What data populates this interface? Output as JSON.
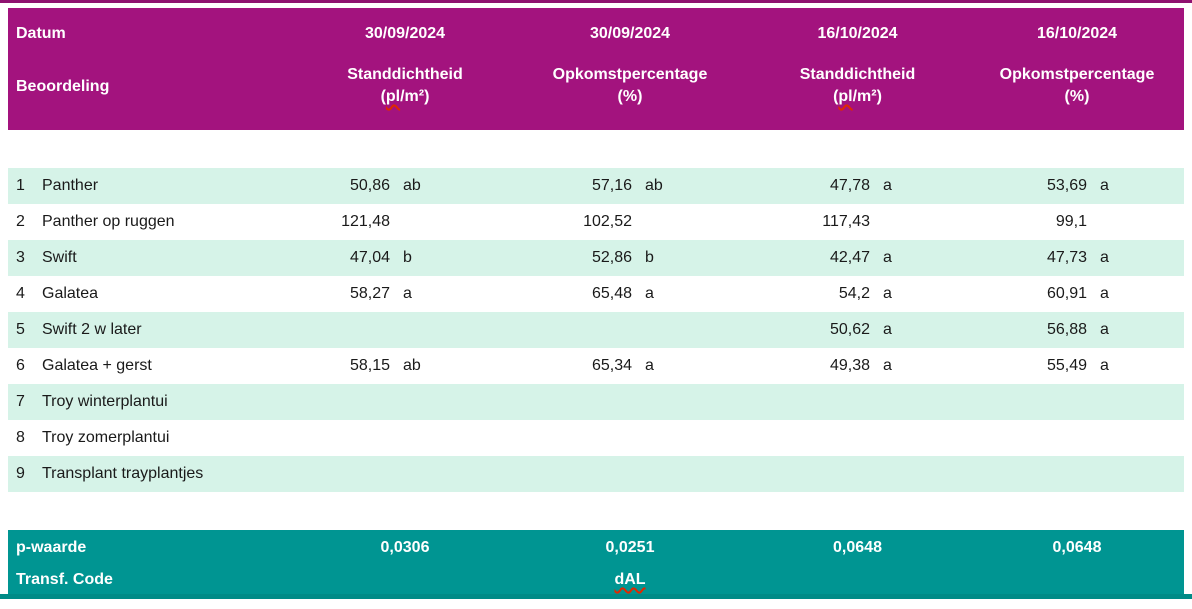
{
  "colors": {
    "header_bg": "#A3137E",
    "footer_bg": "#009592",
    "row_alt_bg": "#D6F3E8",
    "top_line": "#8F1170",
    "bottom_line": "#008B87",
    "spellcheck_squiggle": "#E02800",
    "body_text": "#1A1A1A",
    "header_text": "#FFFFFF"
  },
  "header": {
    "corner_row1": "Datum",
    "corner_row2": "Beoordeling",
    "columns": [
      {
        "date": "30/09/2024",
        "measure": "Standdichtheid",
        "unit_pre": "(",
        "unit_marked": "pl",
        "unit_post": "/m²)"
      },
      {
        "date": "30/09/2024",
        "measure": "Opkomstpercentage",
        "unit_pre": "(%)",
        "unit_marked": "",
        "unit_post": ""
      },
      {
        "date": "16/10/2024",
        "measure": "Standdichtheid",
        "unit_pre": "(",
        "unit_marked": "pl",
        "unit_post": "/m²)"
      },
      {
        "date": "16/10/2024",
        "measure": "Opkomstpercentage",
        "unit_pre": "(%)",
        "unit_marked": "",
        "unit_post": ""
      }
    ]
  },
  "rows": [
    {
      "num": "1",
      "name": "Panther",
      "values": [
        {
          "v": "50,86",
          "sig": "ab"
        },
        {
          "v": "57,16",
          "sig": "ab"
        },
        {
          "v": "47,78",
          "sig": "a"
        },
        {
          "v": "53,69",
          "sig": "a"
        }
      ]
    },
    {
      "num": "2",
      "name": "Panther op ruggen",
      "values": [
        {
          "v": "121,48",
          "sig": ""
        },
        {
          "v": "102,52",
          "sig": ""
        },
        {
          "v": "117,43",
          "sig": ""
        },
        {
          "v": "99,1",
          "sig": ""
        }
      ]
    },
    {
      "num": "3",
      "name": "Swift",
      "values": [
        {
          "v": "47,04",
          "sig": "b"
        },
        {
          "v": "52,86",
          "sig": "b"
        },
        {
          "v": "42,47",
          "sig": "a"
        },
        {
          "v": "47,73",
          "sig": "a"
        }
      ]
    },
    {
      "num": "4",
      "name": "Galatea",
      "values": [
        {
          "v": "58,27",
          "sig": "a"
        },
        {
          "v": "65,48",
          "sig": "a"
        },
        {
          "v": "54,2",
          "sig": "a"
        },
        {
          "v": "60,91",
          "sig": "a"
        }
      ]
    },
    {
      "num": "5",
      "name": "Swift 2 w later",
      "values": [
        {
          "v": "",
          "sig": ""
        },
        {
          "v": "",
          "sig": ""
        },
        {
          "v": "50,62",
          "sig": "a"
        },
        {
          "v": "56,88",
          "sig": "a"
        }
      ]
    },
    {
      "num": "6",
      "name": "Galatea + gerst",
      "values": [
        {
          "v": "58,15",
          "sig": "ab"
        },
        {
          "v": "65,34",
          "sig": "a"
        },
        {
          "v": "49,38",
          "sig": "a"
        },
        {
          "v": "55,49",
          "sig": "a"
        }
      ]
    },
    {
      "num": "7",
      "name": "Troy winterplantui",
      "values": [
        {
          "v": "",
          "sig": ""
        },
        {
          "v": "",
          "sig": ""
        },
        {
          "v": "",
          "sig": ""
        },
        {
          "v": "",
          "sig": ""
        }
      ]
    },
    {
      "num": "8",
      "name": "Troy zomerplantui",
      "values": [
        {
          "v": "",
          "sig": ""
        },
        {
          "v": "",
          "sig": ""
        },
        {
          "v": "",
          "sig": ""
        },
        {
          "v": "",
          "sig": ""
        }
      ]
    },
    {
      "num": "9",
      "name": "Transplant trayplantjes",
      "values": [
        {
          "v": "",
          "sig": ""
        },
        {
          "v": "",
          "sig": ""
        },
        {
          "v": "",
          "sig": ""
        },
        {
          "v": "",
          "sig": ""
        }
      ]
    }
  ],
  "footer": {
    "p_label": "p-waarde",
    "p_values": [
      "0,0306",
      "0,0251",
      "0,0648",
      "0,0648"
    ],
    "transf_label": "Transf. Code",
    "transf_values": [
      "",
      "dAL",
      "",
      ""
    ]
  }
}
